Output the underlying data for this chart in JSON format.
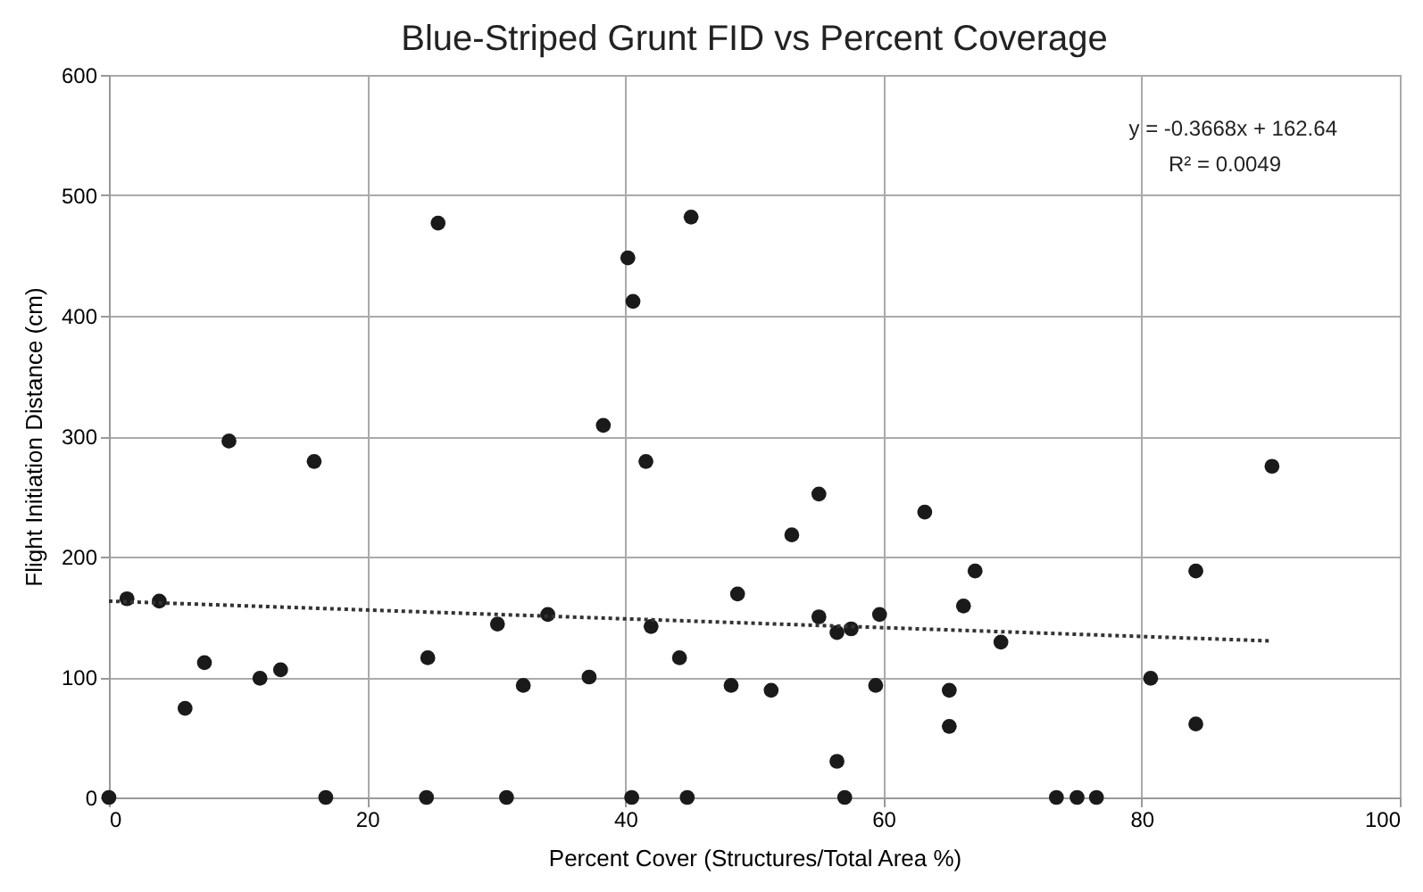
{
  "chart_data": {
    "type": "scatter",
    "title": "Blue-Striped Grunt FID vs Percent Coverage",
    "xlabel": "Percent Cover (Structures/Total Area %)",
    "ylabel": "Flight Initiation Distance (cm)",
    "series": [
      {
        "color": "#1a1a1a",
        "marker": "circle",
        "x": [
          0,
          1.4,
          3.9,
          5.9,
          7.4,
          9.3,
          11.7,
          13.3,
          15.9,
          16.8,
          24.6,
          24.7,
          25.5,
          30.1,
          30.8,
          32.1,
          34,
          37.2,
          38.3,
          40.2,
          40.5,
          40.6,
          41.6,
          42,
          44.2,
          44.8,
          45.1,
          48.2,
          48.7,
          51.3,
          52.9,
          55,
          55,
          56.4,
          56.4,
          57,
          57.5,
          59.7,
          59.4,
          63.2,
          65.1,
          65.1,
          66.2,
          67.1,
          69.1,
          73.4,
          75,
          76.5,
          80.7,
          84.2,
          84.2,
          90.1
        ],
        "values": [
          0,
          165,
          163,
          74,
          112,
          296,
          99,
          106,
          279,
          0,
          0,
          116,
          477,
          144,
          0,
          93,
          152,
          100,
          309,
          448,
          0,
          412,
          279,
          142,
          116,
          0,
          482,
          93,
          169,
          89,
          218,
          252,
          150,
          137,
          30,
          0,
          140,
          152,
          93,
          237,
          89,
          59,
          159,
          188,
          129,
          0,
          0,
          0,
          99,
          188,
          61,
          275
        ]
      },
      {
        "type": "line",
        "color": "#333333",
        "line_style": "dotted",
        "x": [
          0,
          90
        ],
        "values": [
          163,
          130
        ]
      }
    ],
    "annotations": [
      "y = -0.3668x + 162.64",
      "R² = 0.0049"
    ],
    "xlim": [
      0,
      100
    ],
    "xticks": [
      0,
      20,
      40,
      60,
      80,
      100
    ],
    "ylim": [
      0,
      600
    ],
    "yticks": [
      0,
      100,
      200,
      300,
      400,
      500,
      600
    ],
    "grid": true
  }
}
